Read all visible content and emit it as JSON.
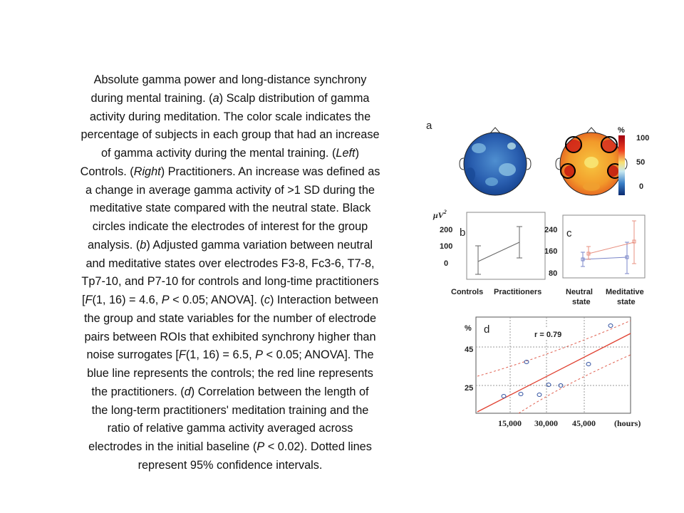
{
  "caption": {
    "lines": [
      [
        "Absolute gamma power and long-distance synchrony"
      ],
      [
        "during mental training. (",
        {
          "i": "a"
        },
        ") Scalp distribution of gamma"
      ],
      [
        "activity during meditation. The color scale indicates the"
      ],
      [
        "percentage of subjects in each group that had an increase"
      ],
      [
        "of gamma activity during the mental training. (",
        {
          "i": "Left"
        },
        ")"
      ],
      [
        "Controls. (",
        {
          "i": "Right"
        },
        ") Practitioners. An increase was defined as"
      ],
      [
        "a change in average gamma activity of >1 SD during the"
      ],
      [
        "meditative state compared with the neutral state. Black"
      ],
      [
        "circles indicate the electrodes of interest for the group"
      ],
      [
        "analysis. (",
        {
          "i": "b"
        },
        ") Adjusted gamma variation between neutral"
      ],
      [
        "and meditative states over electrodes F3-8, Fc3-6, T7-8,"
      ],
      [
        "Tp7-10, and P7-10 for controls and long-time practitioners"
      ],
      [
        "[",
        {
          "i": "F"
        },
        "(1, 16) = 4.6, ",
        {
          "i": "P"
        },
        " < 0.05; ANOVA]. (",
        {
          "i": "c"
        },
        ") Interaction between"
      ],
      [
        "the group and state variables for the number of electrode"
      ],
      [
        "pairs between ROIs that exhibited synchrony higher than"
      ],
      [
        "noise surrogates [",
        {
          "i": "F"
        },
        "(1, 16) = 6.5, ",
        {
          "i": "P"
        },
        " < 0.05; ANOVA]. The"
      ],
      [
        "blue line represents the controls; the red line represents"
      ],
      [
        "the practitioners. (",
        {
          "i": "d"
        },
        ") Correlation between the length of"
      ],
      [
        "the long-term practitioners' meditation training and the"
      ],
      [
        "ratio of relative gamma activity averaged across"
      ],
      [
        "electrodes in the initial baseline (",
        {
          "i": "P"
        },
        " < 0.02). Dotted lines"
      ],
      [
        "represent 95% confidence intervals."
      ]
    ]
  },
  "figure": {
    "panels": [
      {
        "label": "a",
        "colorbar": {
          "unit": "%",
          "ticks": [
            "100",
            "50",
            "0"
          ]
        }
      },
      {
        "label": "b",
        "y_unit": "μV",
        "y_unit_sup": "2",
        "yticks": [
          "200",
          "100",
          "0"
        ],
        "categories": [
          "Controls",
          "Practitioners"
        ]
      },
      {
        "label": "c",
        "yticks": [
          "240",
          "160",
          "80"
        ],
        "categories": [
          [
            "Neutral",
            "state"
          ],
          [
            "Meditative",
            "state"
          ]
        ]
      },
      {
        "label": "d",
        "y_unit": "%",
        "yticks": [
          "45",
          "25"
        ],
        "annotation": "r = 0.79",
        "xticks": [
          "15,000",
          "30,000",
          "45,000"
        ],
        "x_unit": "(hours)"
      }
    ]
  }
}
